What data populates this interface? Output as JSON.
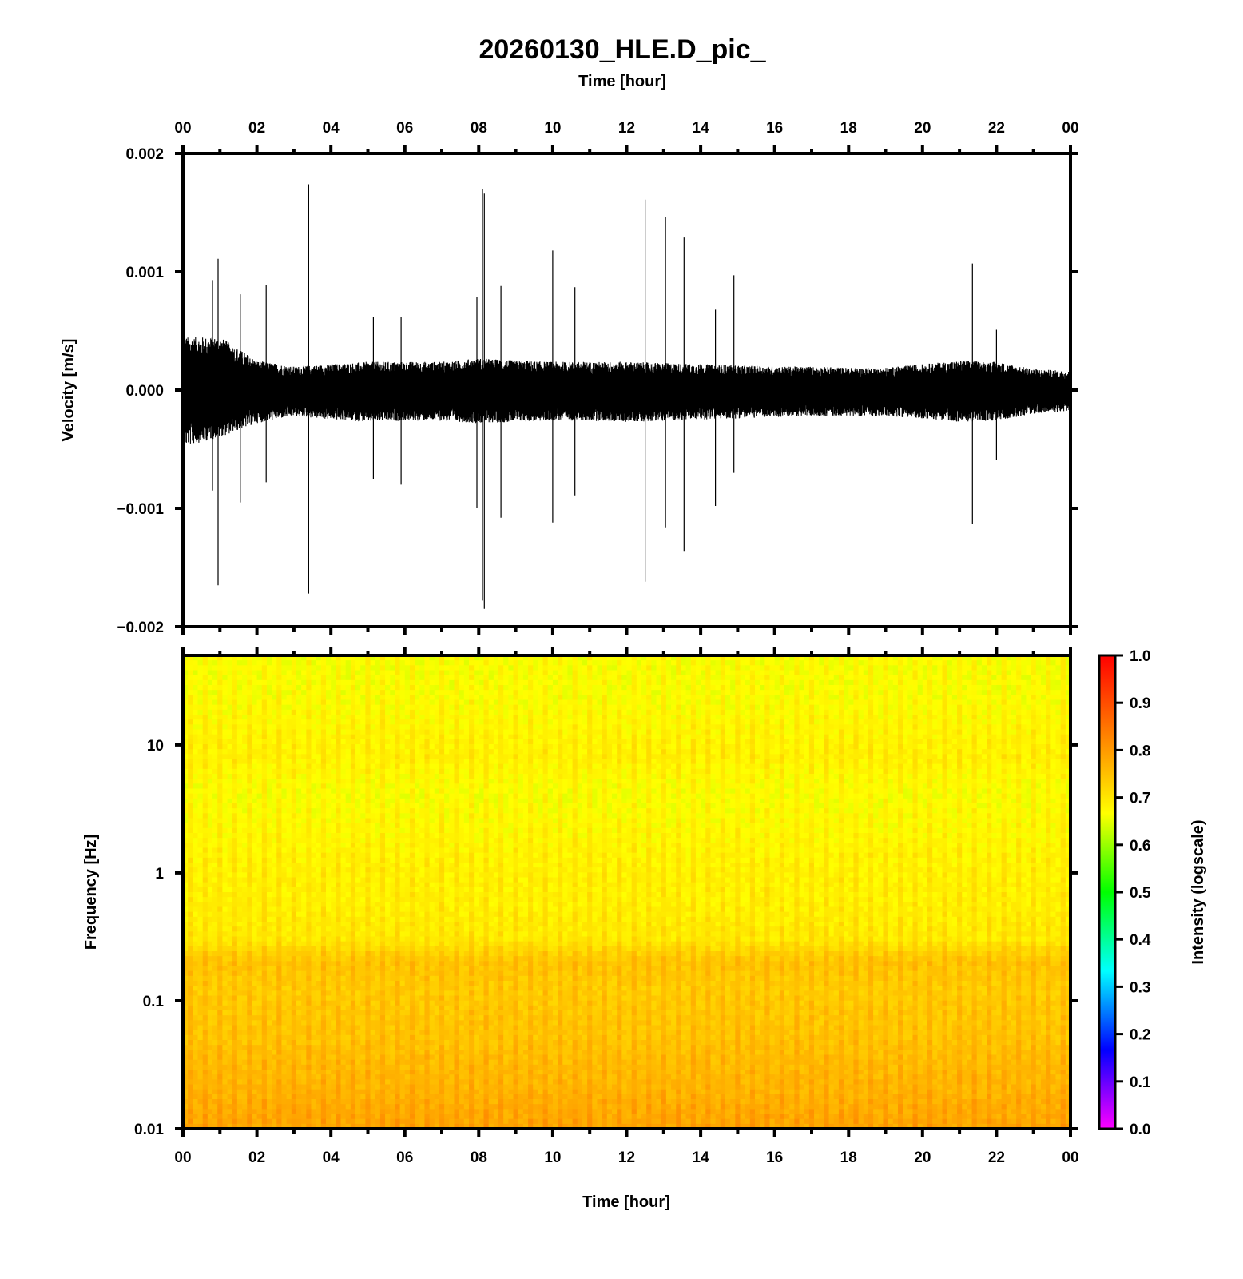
{
  "title": "20260130_HLE.D_pic_",
  "chart_data": [
    {
      "type": "line",
      "name": "velocity-trace",
      "xlabel": "Time [hour]",
      "ylabel": "Velocity [m/s]",
      "x_ticks": [
        "00",
        "02",
        "04",
        "06",
        "08",
        "10",
        "12",
        "14",
        "16",
        "18",
        "20",
        "22",
        "00"
      ],
      "xlim": [
        0,
        24
      ],
      "ylim": [
        -0.002,
        0.002
      ],
      "y_ticks": [
        {
          "v": 0.002,
          "label": "0.002"
        },
        {
          "v": 0.001,
          "label": "0.001"
        },
        {
          "v": 0.0,
          "label": "0.000"
        },
        {
          "v": -0.001,
          "label": "−0.001"
        },
        {
          "v": -0.002,
          "label": "−0.002"
        }
      ],
      "envelope": [
        {
          "x": 0.0,
          "up": 0.00045,
          "lo": -0.00048
        },
        {
          "x": 1.0,
          "up": 0.00045,
          "lo": -0.0004
        },
        {
          "x": 2.0,
          "up": 0.00025,
          "lo": -0.00028
        },
        {
          "x": 3.0,
          "up": 0.0002,
          "lo": -0.00022
        },
        {
          "x": 4.0,
          "up": 0.00022,
          "lo": -0.00025
        },
        {
          "x": 5.0,
          "up": 0.00024,
          "lo": -0.00027
        },
        {
          "x": 6.0,
          "up": 0.00024,
          "lo": -0.00026
        },
        {
          "x": 7.0,
          "up": 0.00024,
          "lo": -0.00026
        },
        {
          "x": 8.0,
          "up": 0.00027,
          "lo": -0.00028
        },
        {
          "x": 9.0,
          "up": 0.00025,
          "lo": -0.00027
        },
        {
          "x": 10.0,
          "up": 0.00024,
          "lo": -0.00026
        },
        {
          "x": 11.0,
          "up": 0.00024,
          "lo": -0.00026
        },
        {
          "x": 12.0,
          "up": 0.00024,
          "lo": -0.00027
        },
        {
          "x": 13.0,
          "up": 0.00023,
          "lo": -0.00026
        },
        {
          "x": 14.0,
          "up": 0.00022,
          "lo": -0.00025
        },
        {
          "x": 15.0,
          "up": 0.00021,
          "lo": -0.00024
        },
        {
          "x": 16.0,
          "up": 0.0002,
          "lo": -0.00023
        },
        {
          "x": 17.0,
          "up": 0.0002,
          "lo": -0.00022
        },
        {
          "x": 18.0,
          "up": 0.00019,
          "lo": -0.00022
        },
        {
          "x": 19.0,
          "up": 0.00019,
          "lo": -0.00022
        },
        {
          "x": 20.0,
          "up": 0.00022,
          "lo": -0.00024
        },
        {
          "x": 21.0,
          "up": 0.00025,
          "lo": -0.00027
        },
        {
          "x": 22.0,
          "up": 0.00024,
          "lo": -0.00026
        },
        {
          "x": 23.0,
          "up": 0.00018,
          "lo": -0.0002
        },
        {
          "x": 24.0,
          "up": 0.00016,
          "lo": -0.00018
        }
      ],
      "spikes": [
        {
          "x": 0.8,
          "up": 0.00093,
          "lo": -0.00085
        },
        {
          "x": 0.95,
          "up": 0.00111,
          "lo": -0.00165
        },
        {
          "x": 1.55,
          "up": 0.00081,
          "lo": -0.00095
        },
        {
          "x": 2.25,
          "up": 0.00089,
          "lo": -0.00078
        },
        {
          "x": 3.4,
          "up": 0.00174,
          "lo": -0.00172
        },
        {
          "x": 5.15,
          "up": 0.00062,
          "lo": -0.00075
        },
        {
          "x": 5.9,
          "up": 0.00062,
          "lo": -0.0008
        },
        {
          "x": 7.95,
          "up": 0.00079,
          "lo": -0.001
        },
        {
          "x": 8.1,
          "up": 0.0017,
          "lo": -0.00178
        },
        {
          "x": 8.15,
          "up": 0.00166,
          "lo": -0.00185
        },
        {
          "x": 8.6,
          "up": 0.00088,
          "lo": -0.00108
        },
        {
          "x": 10.0,
          "up": 0.00118,
          "lo": -0.00112
        },
        {
          "x": 10.6,
          "up": 0.00087,
          "lo": -0.00089
        },
        {
          "x": 12.5,
          "up": 0.00161,
          "lo": -0.00162
        },
        {
          "x": 13.05,
          "up": 0.00146,
          "lo": -0.00116
        },
        {
          "x": 13.55,
          "up": 0.00129,
          "lo": -0.00136
        },
        {
          "x": 14.4,
          "up": 0.00068,
          "lo": -0.00098
        },
        {
          "x": 14.9,
          "up": 0.00097,
          "lo": -0.0007
        },
        {
          "x": 21.35,
          "up": 0.00107,
          "lo": -0.00113
        },
        {
          "x": 22.0,
          "up": 0.00051,
          "lo": -0.00059
        }
      ]
    },
    {
      "type": "heatmap",
      "name": "spectrogram",
      "xlabel": "Time [hour]",
      "ylabel": "Frequency [Hz]",
      "x_ticks": [
        "00",
        "02",
        "04",
        "06",
        "08",
        "10",
        "12",
        "14",
        "16",
        "18",
        "20",
        "22",
        "00"
      ],
      "xlim": [
        0,
        24
      ],
      "yscale": "log",
      "ylim": [
        0.01,
        50
      ],
      "y_ticks": [
        {
          "v": 10,
          "label": "10"
        },
        {
          "v": 1,
          "label": "1"
        },
        {
          "v": 0.1,
          "label": "0.1"
        },
        {
          "v": 0.01,
          "label": "0.01"
        }
      ],
      "intensity_profile": [
        {
          "f": 0.01,
          "value": 0.78
        },
        {
          "f": 0.02,
          "value": 0.76
        },
        {
          "f": 0.05,
          "value": 0.74
        },
        {
          "f": 0.12,
          "value": 0.73
        },
        {
          "f": 0.2,
          "value": 0.74
        },
        {
          "f": 0.3,
          "value": 0.69
        },
        {
          "f": 0.6,
          "value": 0.68
        },
        {
          "f": 1.0,
          "value": 0.68
        },
        {
          "f": 2.0,
          "value": 0.67
        },
        {
          "f": 4.0,
          "value": 0.66
        },
        {
          "f": 8.0,
          "value": 0.68
        },
        {
          "f": 15.0,
          "value": 0.67
        },
        {
          "f": 25.0,
          "value": 0.66
        },
        {
          "f": 50.0,
          "value": 0.66
        }
      ],
      "colorbar": {
        "label": "Intensity (logscale)",
        "range": [
          0.0,
          1.0
        ],
        "ticks": [
          "1.0",
          "0.9",
          "0.8",
          "0.7",
          "0.6",
          "0.5",
          "0.4",
          "0.3",
          "0.2",
          "0.1",
          "0.0"
        ],
        "colors": [
          "#ff00ff",
          "#0000ff",
          "#00ffff",
          "#00ff00",
          "#ffff00",
          "#ff8000",
          "#ff0000"
        ]
      }
    }
  ]
}
